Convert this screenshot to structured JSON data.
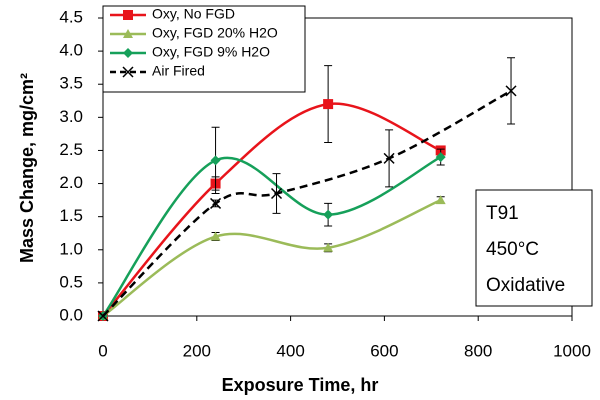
{
  "chart_data": {
    "type": "line",
    "x_label": "Exposure Time, hr",
    "y_label": "Mass Change, mg/cm²",
    "xlim": [
      0,
      1000
    ],
    "xticks": [
      0,
      200,
      400,
      600,
      800,
      1000
    ],
    "ylim": [
      0,
      4.5
    ],
    "yticks": [
      {
        "value": 0,
        "label": "0.0"
      },
      {
        "value": 0.5,
        "label": "0.5"
      },
      {
        "value": 1,
        "label": "1.0"
      },
      {
        "value": 1.5,
        "label": "1.5"
      },
      {
        "value": 2,
        "label": "2.0"
      },
      {
        "value": 2.5,
        "label": "2.5"
      },
      {
        "value": 3,
        "label": "3.0"
      },
      {
        "value": 3.5,
        "label": "3.5"
      },
      {
        "value": 4,
        "label": "4.0"
      },
      {
        "value": 4.5,
        "label": "4.5"
      }
    ],
    "legend_position": "upper left",
    "series": [
      {
        "name": "Oxy, No FGD",
        "color": "#e8141b",
        "marker": "square",
        "dashed": false,
        "x": [
          0,
          240,
          480,
          720
        ],
        "values": [
          0,
          2.0,
          3.2,
          2.5
        ],
        "errors": [
          null,
          0.1,
          0.58,
          0.05
        ]
      },
      {
        "name": "Oxy, FGD 20% H2O",
        "color": "#9bbb59",
        "marker": "triangle",
        "dashed": false,
        "x": [
          0,
          240,
          480,
          720
        ],
        "values": [
          0,
          1.2,
          1.03,
          1.75
        ],
        "errors": [
          null,
          0.06,
          0.06,
          0.05
        ]
      },
      {
        "name": "Oxy, FGD 9% H2O",
        "color": "#16a05a",
        "marker": "diamond",
        "dashed": false,
        "x": [
          0,
          240,
          480,
          720
        ],
        "values": [
          0,
          2.35,
          1.53,
          2.4
        ],
        "errors": [
          null,
          0.5,
          0.17,
          0.12
        ]
      },
      {
        "name": "Air Fired",
        "color": "#000000",
        "marker": "x",
        "dashed": true,
        "x": [
          0,
          240,
          370,
          610,
          870
        ],
        "values": [
          0,
          1.7,
          1.85,
          2.38,
          3.4
        ],
        "errors": [
          null,
          0.05,
          0.3,
          0.43,
          0.5
        ]
      }
    ],
    "annotation": [
      "T91",
      "450°C",
      "Oxidative"
    ]
  }
}
